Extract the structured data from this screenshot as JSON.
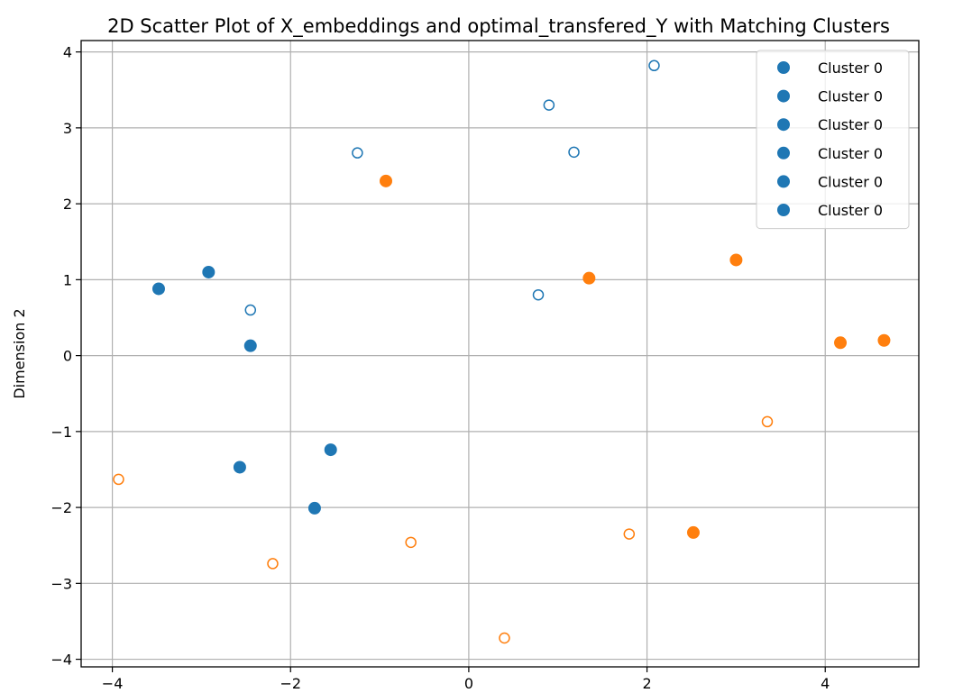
{
  "chart_data": {
    "type": "scatter",
    "title": "2D Scatter Plot of X_embeddings and optimal_transfered_Y with Matching Clusters",
    "xlabel": "",
    "ylabel": "Dimension 2",
    "xlim": [
      -4.35,
      5.05
    ],
    "ylim": [
      -4.1,
      4.15
    ],
    "x_ticks": [
      -4,
      -2,
      0,
      2,
      4
    ],
    "x_tick_labels": [
      "−4",
      "−2",
      "0",
      "2",
      "4"
    ],
    "y_ticks": [
      -4,
      -3,
      -2,
      -1,
      0,
      1,
      2,
      3,
      4
    ],
    "y_tick_labels": [
      "−4",
      "−3",
      "−2",
      "−1",
      "0",
      "1",
      "2",
      "3",
      "4"
    ],
    "grid": true,
    "legend_position": "top-right",
    "legend_entries": [
      "Cluster 0",
      "Cluster 0",
      "Cluster 0",
      "Cluster 0",
      "Cluster 0",
      "Cluster 0"
    ],
    "colors": {
      "blue": "#1f77b4",
      "orange": "#ff7f0e"
    },
    "series": [
      {
        "color": "#1f77b4",
        "marker": "filled",
        "points": [
          {
            "x": -3.48,
            "y": 0.88
          },
          {
            "x": -2.92,
            "y": 1.1
          },
          {
            "x": -2.45,
            "y": 0.13
          },
          {
            "x": -2.57,
            "y": -1.47
          },
          {
            "x": -1.55,
            "y": -1.24
          },
          {
            "x": -1.73,
            "y": -2.01
          }
        ]
      },
      {
        "color": "#1f77b4",
        "marker": "hollow",
        "points": [
          {
            "x": -1.25,
            "y": 2.67
          },
          {
            "x": -2.45,
            "y": 0.6
          },
          {
            "x": 0.9,
            "y": 3.3
          },
          {
            "x": 1.18,
            "y": 2.68
          },
          {
            "x": 2.08,
            "y": 3.82
          },
          {
            "x": 0.78,
            "y": 0.8
          }
        ]
      },
      {
        "color": "#ff7f0e",
        "marker": "filled",
        "points": [
          {
            "x": -0.93,
            "y": 2.3
          },
          {
            "x": 1.35,
            "y": 1.02
          },
          {
            "x": 3.0,
            "y": 1.26
          },
          {
            "x": 4.17,
            "y": 0.17
          },
          {
            "x": 4.66,
            "y": 0.2
          },
          {
            "x": 2.52,
            "y": -2.33
          }
        ]
      },
      {
        "color": "#ff7f0e",
        "marker": "hollow",
        "points": [
          {
            "x": -3.93,
            "y": -1.63
          },
          {
            "x": -2.2,
            "y": -2.74
          },
          {
            "x": -0.65,
            "y": -2.46
          },
          {
            "x": 0.4,
            "y": -3.72
          },
          {
            "x": 1.8,
            "y": -2.35
          },
          {
            "x": 3.35,
            "y": -0.87
          }
        ]
      }
    ]
  }
}
